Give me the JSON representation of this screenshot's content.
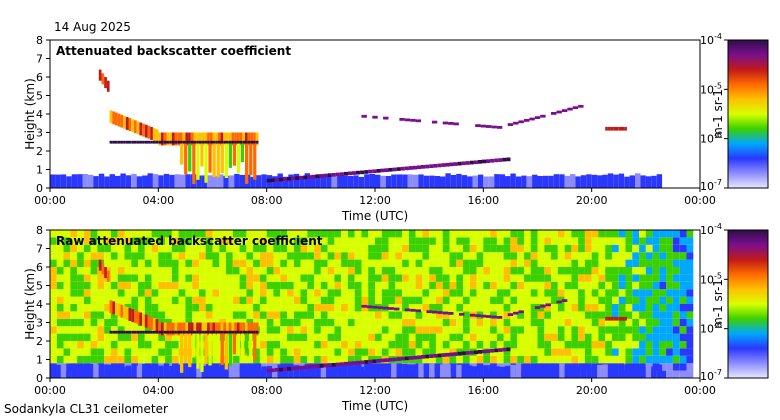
{
  "date": "14 Aug 2025",
  "footer": "Sodankyla CL31 ceilometer",
  "colorbar": {
    "labels": [
      "10-4",
      "10-5",
      "10-6",
      "10-7"
    ],
    "unit": "m-1 sr-1",
    "stops": [
      "#2d0e4a",
      "#7a0f8c",
      "#c01a1a",
      "#ff6a00",
      "#ffc000",
      "#d8ff00",
      "#3cd000",
      "#00a8ff",
      "#2a38ff",
      "#8c8cff",
      "#e8e8ff"
    ]
  },
  "chart_data": [
    {
      "type": "heatmap",
      "title": "Attenuated backscatter coefficient",
      "xlabel": "Time (UTC)",
      "ylabel": "Height (km)",
      "xticks": [
        "00:00",
        "04:00",
        "08:00",
        "12:00",
        "16:00",
        "20:00",
        "00:00"
      ],
      "yticks": [
        "0",
        "1",
        "2",
        "3",
        "4",
        "5",
        "6",
        "7",
        "8"
      ],
      "xlim_hours": [
        0,
        24
      ],
      "ylim_km": [
        0,
        8
      ],
      "colorscale": "log",
      "clim": [
        1e-07,
        0.0001
      ]
    },
    {
      "type": "heatmap",
      "title": "Raw attenuated backscatter coefficient",
      "xlabel": "Time (UTC)",
      "ylabel": "Height (km)",
      "xticks": [
        "00:00",
        "04:00",
        "08:00",
        "12:00",
        "16:00",
        "20:00",
        "00:00"
      ],
      "yticks": [
        "0",
        "1",
        "2",
        "3",
        "4",
        "5",
        "6",
        "7",
        "8"
      ],
      "xlim_hours": [
        0,
        24
      ],
      "ylim_km": [
        0,
        8
      ],
      "colorscale": "log",
      "clim": [
        1e-07,
        0.0001
      ]
    }
  ]
}
